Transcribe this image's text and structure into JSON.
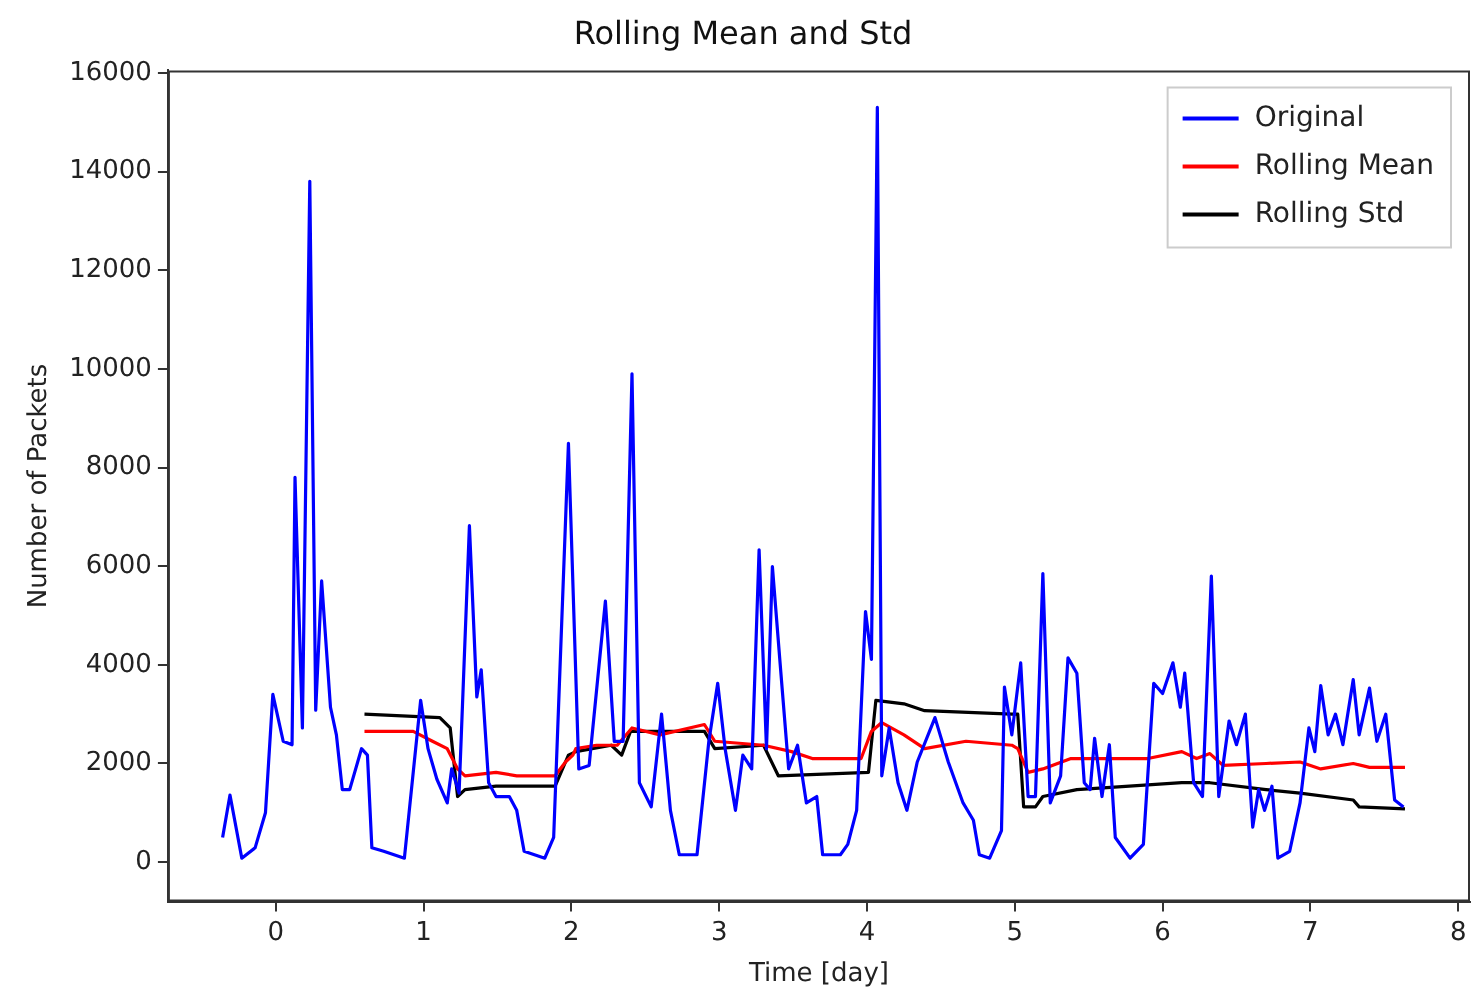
{
  "chart_data": {
    "type": "line",
    "title": "Rolling Mean and Std",
    "xlabel": "Time [day]",
    "ylabel": "Number of Packets",
    "xlim": [
      -0.73,
      8.08
    ],
    "ylim": [
      -800,
      16050
    ],
    "xticks": [
      0,
      1,
      2,
      3,
      4,
      5,
      6,
      7,
      8
    ],
    "yticks": [
      0,
      2000,
      4000,
      6000,
      8000,
      10000,
      12000,
      14000,
      16000
    ],
    "grid": false,
    "legend": "top right",
    "marker": "none",
    "line_style": "solid",
    "series": [
      {
        "name": "Original",
        "color": "#0000ff",
        "x": [
          -0.36,
          -0.31,
          -0.23,
          -0.14,
          -0.07,
          -0.02,
          0.05,
          0.11,
          0.13,
          0.18,
          0.23,
          0.27,
          0.31,
          0.37,
          0.41,
          0.45,
          0.5,
          0.58,
          0.62,
          0.65,
          0.73,
          0.87,
          0.98,
          1.03,
          1.09,
          1.16,
          1.19,
          1.24,
          1.31,
          1.36,
          1.39,
          1.44,
          1.49,
          1.58,
          1.63,
          1.68,
          1.82,
          1.88,
          1.98,
          2.05,
          2.12,
          2.23,
          2.29,
          2.35,
          2.41,
          2.46,
          2.54,
          2.61,
          2.67,
          2.73,
          2.85,
          2.93,
          2.99,
          3.04,
          3.11,
          3.16,
          3.22,
          3.27,
          3.32,
          3.36,
          3.41,
          3.47,
          3.53,
          3.59,
          3.66,
          3.7,
          3.82,
          3.87,
          3.93,
          3.99,
          4.03,
          4.07,
          4.1,
          4.15,
          4.21,
          4.27,
          4.34,
          4.46,
          4.55,
          4.65,
          4.72,
          4.76,
          4.83,
          4.91,
          4.93,
          4.98,
          5.04,
          5.09,
          5.14,
          5.19,
          5.24,
          5.31,
          5.36,
          5.42,
          5.47,
          5.51,
          5.54,
          5.59,
          5.64,
          5.68,
          5.78,
          5.87,
          5.94,
          6.0,
          6.07,
          6.12,
          6.15,
          6.21,
          6.27,
          6.33,
          6.38,
          6.45,
          6.5,
          6.56,
          6.61,
          6.65,
          6.69,
          6.74,
          6.78,
          6.86,
          6.93,
          6.99,
          7.03,
          7.07,
          7.12,
          7.17,
          7.22,
          7.29,
          7.33,
          7.4,
          7.45,
          7.51,
          7.57,
          7.63
        ],
        "values": [
          500,
          1360,
          80,
          290,
          1000,
          3400,
          2450,
          2380,
          7800,
          2720,
          13800,
          3080,
          5700,
          3140,
          2580,
          1470,
          1470,
          2300,
          2170,
          290,
          220,
          80,
          3280,
          2300,
          1680,
          1200,
          1890,
          1400,
          6820,
          3350,
          3900,
          1610,
          1330,
          1330,
          1050,
          220,
          80,
          500,
          8490,
          1890,
          1960,
          5290,
          2450,
          2450,
          9900,
          1610,
          1120,
          3000,
          1050,
          150,
          150,
          2450,
          3625,
          2300,
          1050,
          2170,
          1890,
          6330,
          2300,
          5990,
          4110,
          1890,
          2370,
          1200,
          1330,
          150,
          150,
          360,
          1050,
          5080,
          4110,
          15300,
          1750,
          2720,
          1610,
          1050,
          2030,
          2930,
          2030,
          1200,
          850,
          150,
          80,
          640,
          3550,
          2580,
          4040,
          1330,
          1330,
          5850,
          1200,
          1750,
          4140,
          3830,
          1610,
          1470,
          2510,
          1330,
          2380,
          500,
          80,
          360,
          3625,
          3420,
          4040,
          3140,
          3830,
          1610,
          1330,
          5800,
          1330,
          2860,
          2380,
          3000,
          710,
          1470,
          1050,
          1540,
          80,
          220,
          1200,
          2720,
          2240,
          3580,
          2580,
          3000,
          2380,
          3700,
          2580,
          3530,
          2450,
          3000,
          1260,
          1120
        ]
      },
      {
        "name": "Rolling Mean",
        "color": "#ff0000",
        "x": [
          0.6,
          0.93,
          1.06,
          1.16,
          1.23,
          1.28,
          1.49,
          1.63,
          1.89,
          1.96,
          2.01,
          2.03,
          2.17,
          2.31,
          2.41,
          2.6,
          2.9,
          2.97,
          3.3,
          3.49,
          3.63,
          3.96,
          4.03,
          4.1,
          4.25,
          4.39,
          4.67,
          4.98,
          5.02,
          5.09,
          5.19,
          5.38,
          5.66,
          5.9,
          6.13,
          6.23,
          6.32,
          6.41,
          6.7,
          6.93,
          7.07,
          7.29,
          7.4,
          7.64
        ],
        "values": [
          2650,
          2650,
          2450,
          2300,
          1890,
          1750,
          1820,
          1750,
          1750,
          2030,
          2170,
          2300,
          2370,
          2370,
          2720,
          2580,
          2790,
          2450,
          2370,
          2240,
          2100,
          2100,
          2650,
          2830,
          2580,
          2300,
          2450,
          2370,
          2300,
          1820,
          1890,
          2100,
          2100,
          2100,
          2240,
          2100,
          2200,
          1960,
          2000,
          2030,
          1890,
          2000,
          1920,
          1920
        ]
      },
      {
        "name": "Rolling Std",
        "color": "#000000",
        "x": [
          0.6,
          1.11,
          1.18,
          1.23,
          1.28,
          1.49,
          1.89,
          1.98,
          2.03,
          2.27,
          2.34,
          2.4,
          2.9,
          2.97,
          3.3,
          3.4,
          4.01,
          4.06,
          4.25,
          4.39,
          4.98,
          5.02,
          5.06,
          5.14,
          5.19,
          5.42,
          6.13,
          6.32,
          6.7,
          6.93,
          7.29,
          7.33,
          7.64
        ],
        "values": [
          3000,
          2930,
          2720,
          1330,
          1470,
          1540,
          1540,
          2170,
          2240,
          2370,
          2170,
          2650,
          2650,
          2300,
          2370,
          1750,
          1820,
          3280,
          3210,
          3070,
          3000,
          3000,
          1120,
          1120,
          1330,
          1470,
          1610,
          1610,
          1470,
          1400,
          1260,
          1120,
          1080
        ]
      }
    ]
  }
}
